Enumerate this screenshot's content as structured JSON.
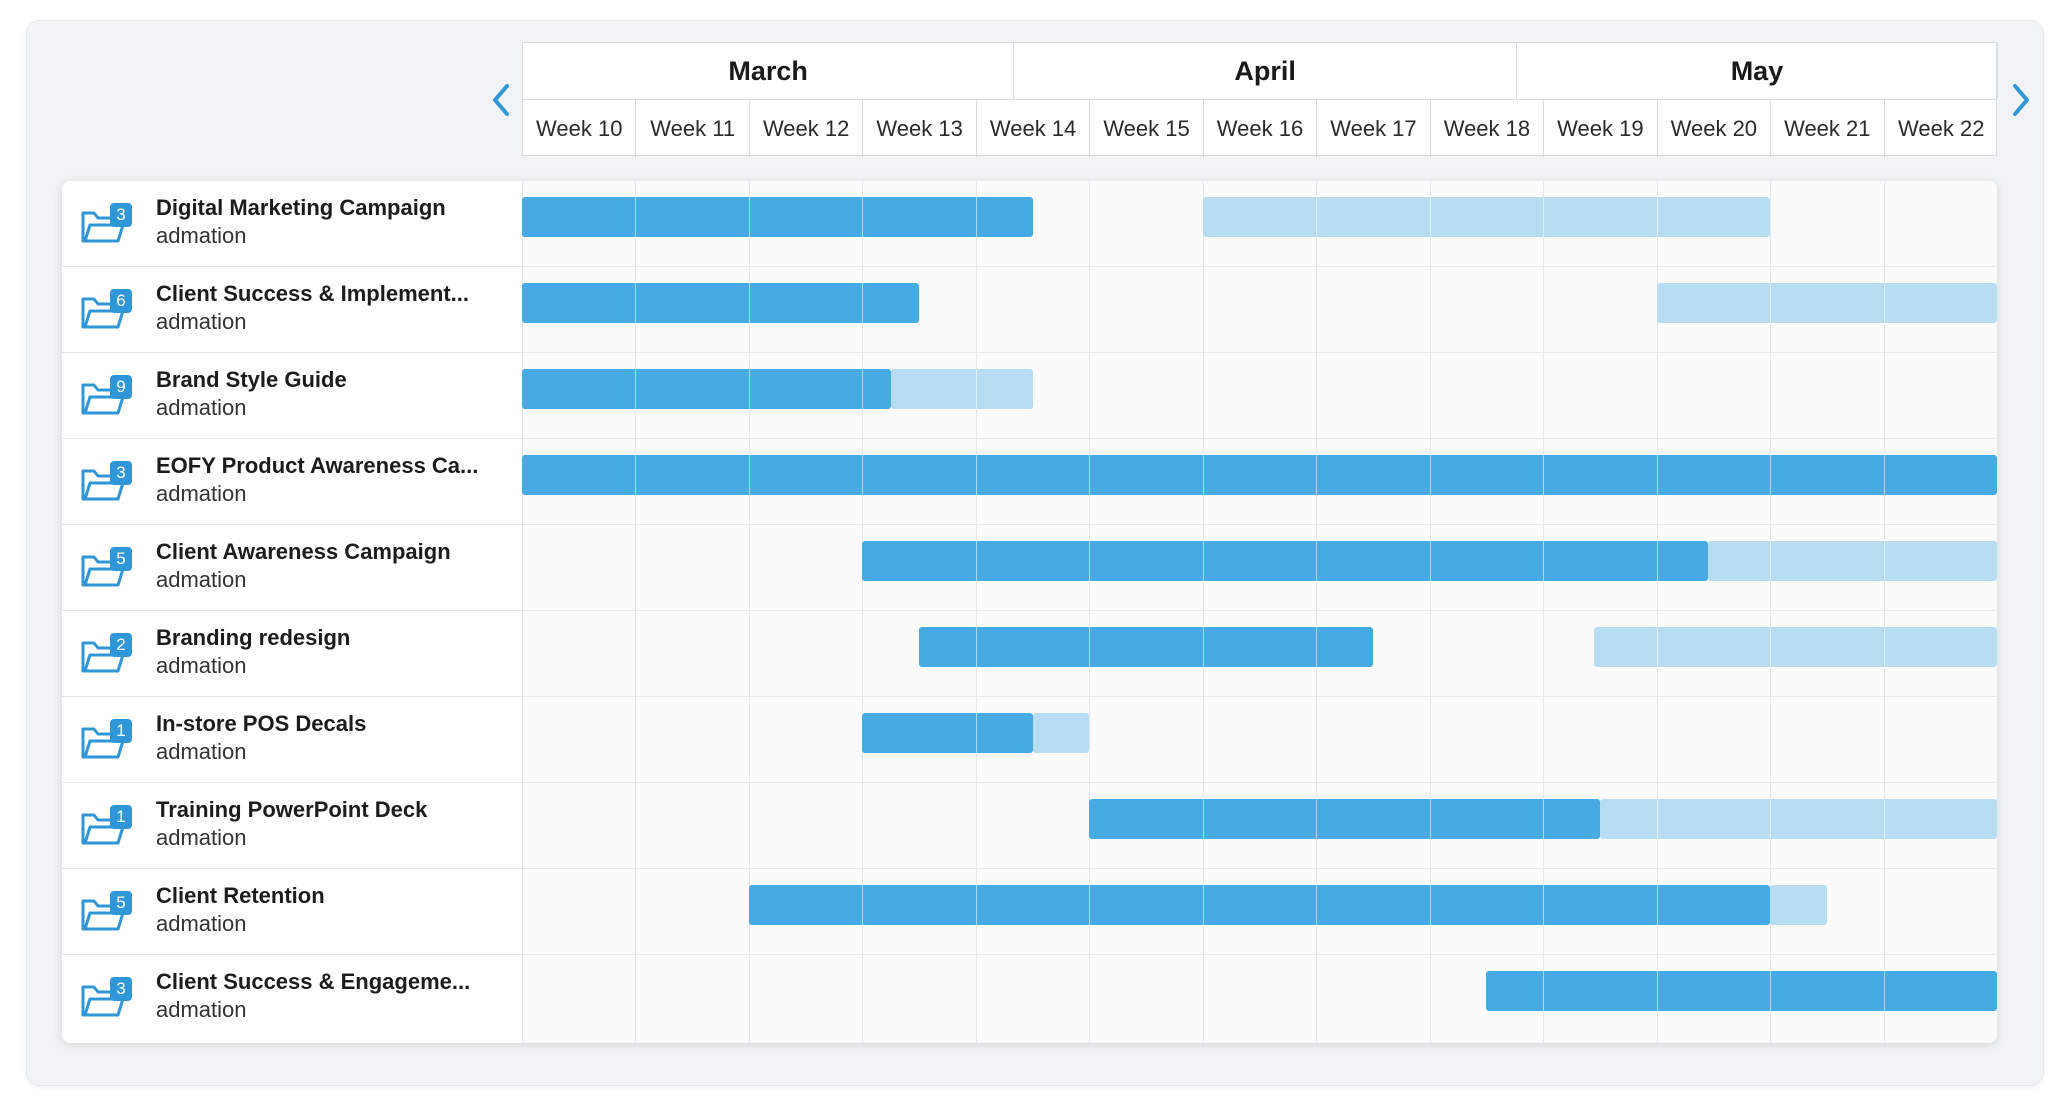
{
  "timeline": {
    "months": [
      {
        "label": "March",
        "weeks": 4.33
      },
      {
        "label": "April",
        "weeks": 4.43
      },
      {
        "label": "May",
        "weeks": 4.24
      }
    ],
    "weeks": [
      "Week 10",
      "Week 11",
      "Week 12",
      "Week 13",
      "Week 14",
      "Week 15",
      "Week 16",
      "Week 17",
      "Week 18",
      "Week 19",
      "Week 20",
      "Week 21",
      "Week 22"
    ]
  },
  "nav": {
    "prev_icon": "chevron-left-icon",
    "next_icon": "chevron-right-icon"
  },
  "colors": {
    "actual": "#46abe2",
    "planned": "#b7ddf3",
    "accent": "#2f97d8"
  },
  "projects": [
    {
      "name": "Digital Marketing Campaign",
      "owner": "admation",
      "count": "3",
      "bars": [
        {
          "kind": "actual",
          "start": 0,
          "end": 4.5
        },
        {
          "kind": "planned",
          "start": 6,
          "end": 11
        }
      ]
    },
    {
      "name": "Client Success & Implement...",
      "owner": "admation",
      "count": "6",
      "bars": [
        {
          "kind": "actual",
          "start": 0,
          "end": 3.5
        },
        {
          "kind": "planned",
          "start": 10,
          "end": 13
        }
      ]
    },
    {
      "name": "Brand Style Guide",
      "owner": "admation",
      "count": "9",
      "bars": [
        {
          "kind": "planned",
          "start": 3.25,
          "end": 4.5
        },
        {
          "kind": "actual",
          "start": 0,
          "end": 3.25
        }
      ]
    },
    {
      "name": "EOFY Product Awareness Ca...",
      "owner": "admation",
      "count": "3",
      "bars": [
        {
          "kind": "actual",
          "start": 0,
          "end": 13
        }
      ]
    },
    {
      "name": "Client Awareness Campaign",
      "owner": "admation",
      "count": "5",
      "bars": [
        {
          "kind": "planned",
          "start": 10.45,
          "end": 13
        },
        {
          "kind": "actual",
          "start": 3,
          "end": 10.45
        }
      ]
    },
    {
      "name": "Branding redesign",
      "owner": "admation",
      "count": "2",
      "bars": [
        {
          "kind": "actual",
          "start": 3.5,
          "end": 7.5
        },
        {
          "kind": "planned",
          "start": 9.45,
          "end": 13
        }
      ]
    },
    {
      "name": "In-store POS Decals",
      "owner": "admation",
      "count": "1",
      "bars": [
        {
          "kind": "planned",
          "start": 4.5,
          "end": 5
        },
        {
          "kind": "actual",
          "start": 3,
          "end": 4.5
        }
      ]
    },
    {
      "name": "Training PowerPoint Deck",
      "owner": "admation",
      "count": "1",
      "bars": [
        {
          "kind": "planned",
          "start": 9.5,
          "end": 13
        },
        {
          "kind": "actual",
          "start": 5,
          "end": 9.5
        }
      ]
    },
    {
      "name": "Client Retention",
      "owner": "admation",
      "count": "5",
      "bars": [
        {
          "kind": "planned",
          "start": 11,
          "end": 11.5
        },
        {
          "kind": "actual",
          "start": 2,
          "end": 11
        }
      ]
    },
    {
      "name": "Client Success & Engageme...",
      "owner": "admation",
      "count": "3",
      "bars": [
        {
          "kind": "actual",
          "start": 8.5,
          "end": 13
        }
      ]
    }
  ]
}
